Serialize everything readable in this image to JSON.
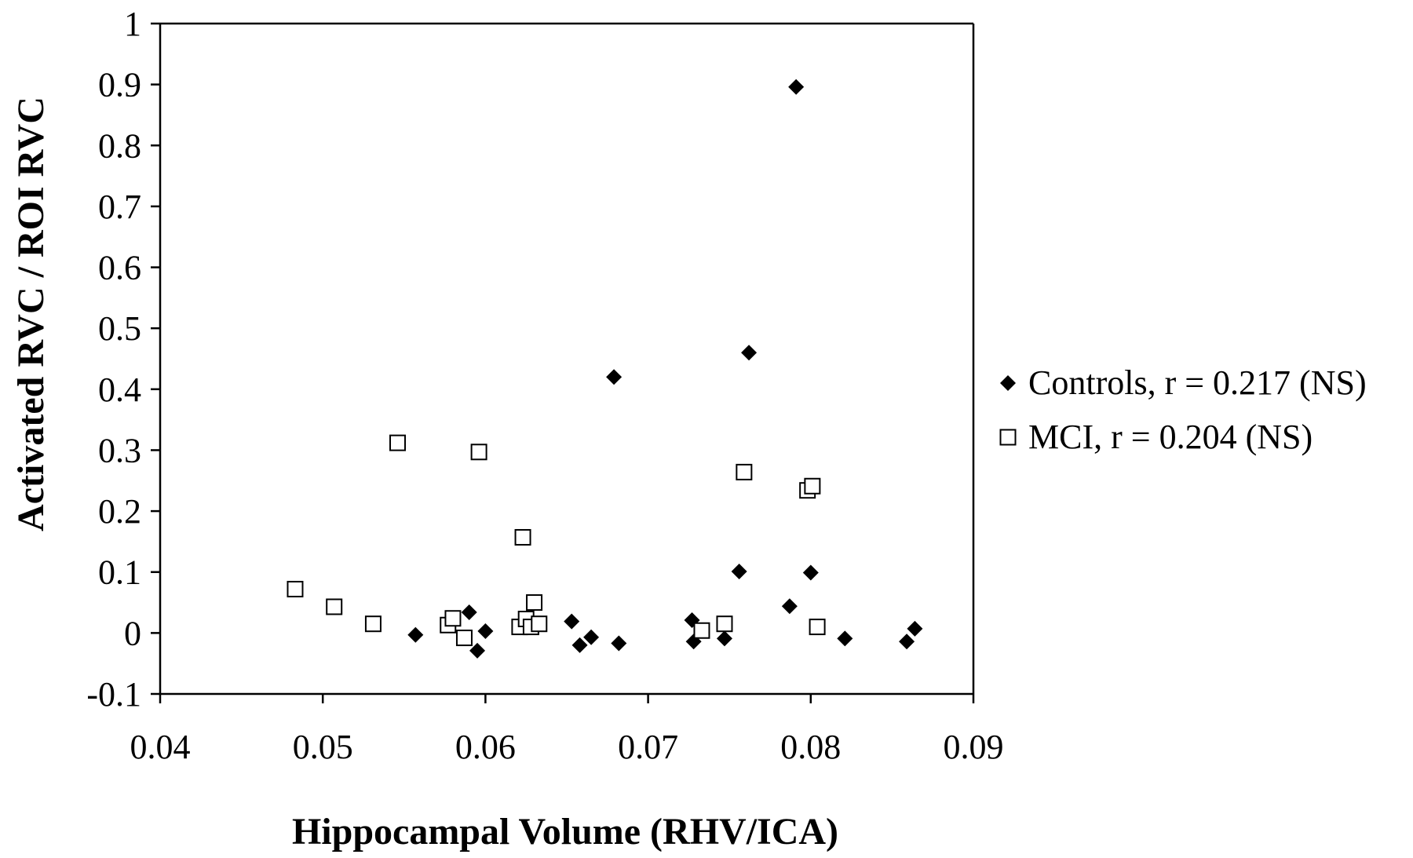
{
  "chart_data": {
    "type": "scatter",
    "title": "",
    "xlabel": "Hippocampal Volume (RHV/ICA)",
    "ylabel": "Activated RVC / ROI RVC",
    "xlim": [
      0.04,
      0.09
    ],
    "ylim": [
      -0.1,
      1.0
    ],
    "x_ticks": [
      0.04,
      0.05,
      0.06,
      0.07,
      0.08,
      0.09
    ],
    "x_tick_labels": [
      "0.04",
      "0.05",
      "0.06",
      "0.07",
      "0.08",
      "0.09"
    ],
    "y_ticks": [
      -0.1,
      0,
      0.1,
      0.2,
      0.3,
      0.4,
      0.5,
      0.6,
      0.7,
      0.8,
      0.9,
      1.0
    ],
    "y_tick_labels": [
      "-0.1",
      "0",
      "0.1",
      "0.2",
      "0.3",
      "0.4",
      "0.5",
      "0.6",
      "0.7",
      "0.8",
      "0.9",
      "1"
    ],
    "grid": false,
    "legend_position": "right",
    "series": [
      {
        "name": "Controls, r = 0.217 (NS)",
        "marker": "diamond-filled",
        "color": "#000000",
        "points": [
          [
            0.0557,
            -0.003
          ],
          [
            0.059,
            0.034
          ],
          [
            0.0595,
            -0.029
          ],
          [
            0.06,
            0.003
          ],
          [
            0.0653,
            0.019
          ],
          [
            0.0658,
            -0.02
          ],
          [
            0.0665,
            -0.007
          ],
          [
            0.0679,
            0.42
          ],
          [
            0.0682,
            -0.017
          ],
          [
            0.0727,
            0.021
          ],
          [
            0.0728,
            -0.014
          ],
          [
            0.0747,
            -0.009
          ],
          [
            0.0756,
            0.101
          ],
          [
            0.0762,
            0.46
          ],
          [
            0.0787,
            0.044
          ],
          [
            0.0791,
            0.896
          ],
          [
            0.08,
            0.099
          ],
          [
            0.0821,
            -0.009
          ],
          [
            0.0859,
            -0.014
          ],
          [
            0.0864,
            0.007
          ]
        ]
      },
      {
        "name": "MCI, r = 0.204 (NS)",
        "marker": "square-open",
        "color": "#000000",
        "points": [
          [
            0.0483,
            0.072
          ],
          [
            0.0507,
            0.043
          ],
          [
            0.0531,
            0.015
          ],
          [
            0.0546,
            0.312
          ],
          [
            0.0577,
            0.013
          ],
          [
            0.058,
            0.024
          ],
          [
            0.0587,
            -0.008
          ],
          [
            0.0596,
            0.297
          ],
          [
            0.0621,
            0.01
          ],
          [
            0.0623,
            0.157
          ],
          [
            0.0625,
            0.023
          ],
          [
            0.0628,
            0.01
          ],
          [
            0.063,
            0.05
          ],
          [
            0.0633,
            0.015
          ],
          [
            0.0733,
            0.004
          ],
          [
            0.0747,
            0.015
          ],
          [
            0.0759,
            0.264
          ],
          [
            0.0798,
            0.234
          ],
          [
            0.0801,
            0.241
          ],
          [
            0.0804,
            0.01
          ]
        ]
      }
    ]
  }
}
